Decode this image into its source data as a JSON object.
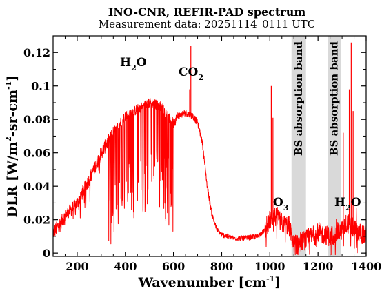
{
  "chart_data": {
    "type": "line",
    "title": "INO-CNR, REFIR-PAD spectrum",
    "subtitle": "Measurement data: 20251114_0111 UTC",
    "xlabel": {
      "main": "Wavenumber [cm",
      "sup": "-1",
      "close": "]"
    },
    "ylabel": {
      "a": "DLR [W/m",
      "sup1": "2",
      "b": "-sr-cm",
      "sup2": "-1",
      "c": "]"
    },
    "xlim": [
      100,
      1400
    ],
    "ylim": [
      -0.002,
      0.13
    ],
    "xticks": [
      200,
      400,
      600,
      800,
      1000,
      1200,
      1400
    ],
    "yticks": [
      0,
      0.02,
      0.04,
      0.06,
      0.08,
      0.1,
      0.12
    ],
    "ytick_labels": [
      "0",
      "0.02",
      "0.04",
      "0.06",
      "0.08",
      "0.1",
      "0.12"
    ],
    "line_color": "#ff0000",
    "shaded_color": "#d9d9d9",
    "shaded_bands": [
      {
        "x0": 1090,
        "x1": 1150,
        "label": "BS absorption band"
      },
      {
        "x0": 1240,
        "x1": 1295,
        "label": "BS absorption band"
      }
    ],
    "annotations": {
      "h2o_left": {
        "main": "H",
        "sub": "2",
        "rest": "O"
      },
      "co2": {
        "main": "CO",
        "sub": "2"
      },
      "o3": {
        "main": "O",
        "sub": "3"
      },
      "h2o_right": {
        "main": "H",
        "sub": "2",
        "rest": "O"
      }
    },
    "series": [
      {
        "x": [
          100,
          150,
          200,
          250,
          300,
          350,
          400,
          450,
          500,
          550,
          580,
          600,
          620,
          650,
          680,
          700,
          720,
          740,
          760,
          780,
          800,
          850,
          900,
          950,
          980,
          1000,
          1020,
          1050,
          1080,
          1100,
          1150,
          1200,
          1250,
          1300,
          1320,
          1340,
          1360,
          1400
        ],
        "y": [
          0.012,
          0.022,
          0.03,
          0.044,
          0.06,
          0.072,
          0.082,
          0.086,
          0.09,
          0.088,
          0.081,
          0.078,
          0.082,
          0.084,
          0.082,
          0.078,
          0.066,
          0.04,
          0.023,
          0.014,
          0.011,
          0.009,
          0.009,
          0.01,
          0.014,
          0.02,
          0.022,
          0.018,
          0.016,
          0.005,
          0.008,
          0.012,
          0.01,
          0.014,
          0.018,
          0.016,
          0.013,
          0.01
        ]
      }
    ],
    "spikes": [
      {
        "x": 672,
        "y": 0.124
      },
      {
        "x": 667,
        "y": 0.098
      },
      {
        "x": 1006,
        "y": 0.1
      },
      {
        "x": 1013,
        "y": 0.081
      },
      {
        "x": 1338,
        "y": 0.126
      },
      {
        "x": 1330,
        "y": 0.098
      },
      {
        "x": 1346,
        "y": 0.085
      },
      {
        "x": 1305,
        "y": 0.072
      }
    ],
    "grid": false
  }
}
